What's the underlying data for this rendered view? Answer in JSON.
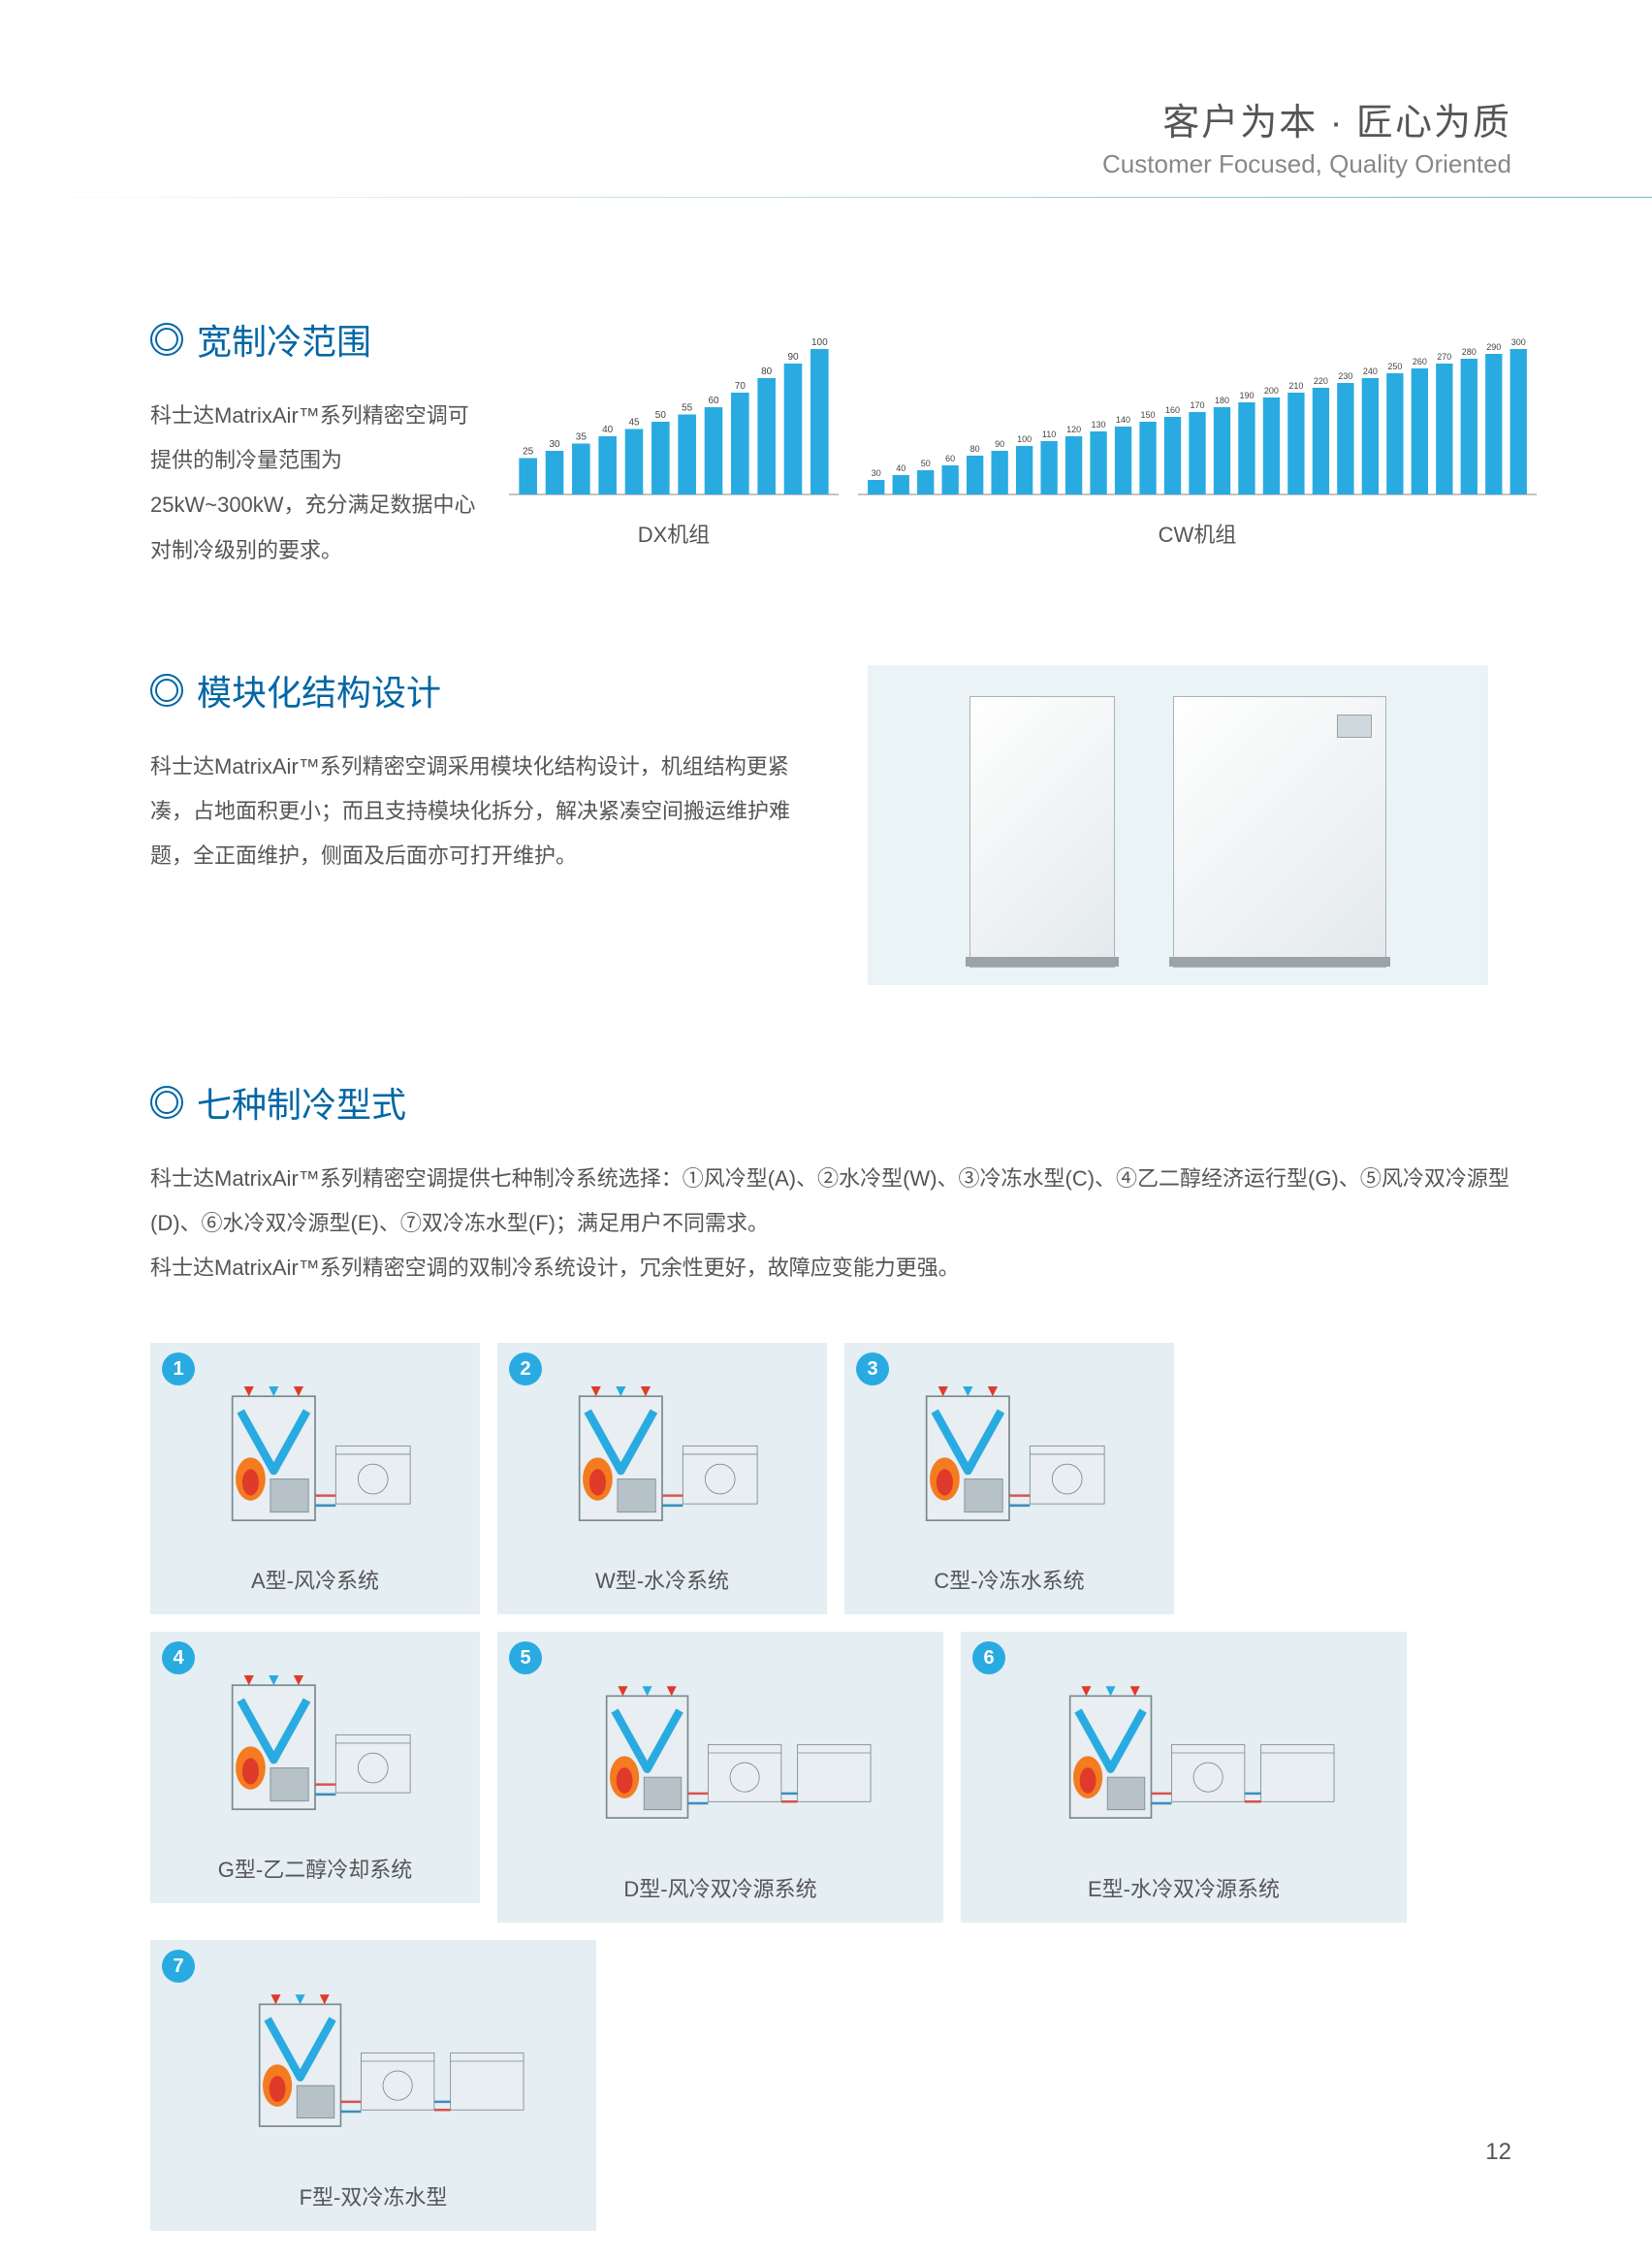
{
  "header": {
    "title_cn": "客户为本 · 匠心为质",
    "title_en": "Customer Focused, Quality Oriented",
    "title_cn_color": "#555555",
    "title_en_color": "#888888",
    "hr_gradient_from": "#ffffff",
    "hr_gradient_to": "#6fb7c9"
  },
  "brand_blue": "#0066a5",
  "bar_color": "#29abe2",
  "panel_bg": "#e5eef2",
  "sec1": {
    "title": "宽制冷范围",
    "desc": "科士达MatrixAir™系列精密空调可提供的制冷量范围为25kW~300kW，充分满足数据中心对制冷级别的要求。",
    "dx": {
      "label": "DX机组",
      "type": "bar",
      "values": [
        25,
        30,
        35,
        40,
        45,
        50,
        55,
        60,
        70,
        80,
        90,
        100
      ],
      "max": 100
    },
    "cw": {
      "label": "CW机组",
      "type": "bar",
      "values": [
        30,
        40,
        50,
        60,
        80,
        90,
        100,
        110,
        120,
        130,
        140,
        150,
        160,
        170,
        180,
        190,
        200,
        210,
        220,
        230,
        240,
        250,
        260,
        270,
        280,
        290,
        300
      ],
      "max": 300
    }
  },
  "sec2": {
    "title": "模块化结构设计",
    "desc": "科士达MatrixAir™系列精密空调采用模块化结构设计，机组结构更紧凑，占地面积更小；而且支持模块化拆分，解决紧凑空间搬运维护难题，全正面维护，侧面及后面亦可打开维护。",
    "illustration_bg": "#eaf3f6"
  },
  "sec3": {
    "title": "七种制冷型式",
    "desc_line1": "科士达MatrixAir™系列精密空调提供七种制冷系统选择：①风冷型(A)、②水冷型(W)、③冷冻水型(C)、④乙二醇经济运行型(G)、⑤风冷双冷源型(D)、⑥水冷双冷源型(E)、⑦双冷冻水型(F)；满足用户不同需求。",
    "desc_line2": "科士达MatrixAir™系列精密空调的双制冷系统设计，冗余性更好，故障应变能力更强。",
    "types": [
      {
        "num": "1",
        "label": "A型-风冷系统",
        "size": "small"
      },
      {
        "num": "2",
        "label": "W型-水冷系统",
        "size": "small"
      },
      {
        "num": "3",
        "label": "C型-冷冻水系统",
        "size": "small"
      },
      {
        "num": "4",
        "label": "G型-乙二醇冷却系统",
        "size": "small"
      },
      {
        "num": "5",
        "label": "D型-风冷双冷源系统",
        "size": "large"
      },
      {
        "num": "6",
        "label": "E型-水冷双冷源系统",
        "size": "large"
      },
      {
        "num": "7",
        "label": "F型-双冷冻水型",
        "size": "large"
      }
    ],
    "illus_colors": {
      "cabinet_outline": "#7a8a92",
      "cabinet_fill": "#e8eef1",
      "v_blue": "#29abe2",
      "flame_orange": "#f47b20",
      "flame_red": "#e03a2a",
      "pipe_red": "#d9534f",
      "pipe_blue": "#3c8dbc",
      "arrow_up": "#e03a2a"
    }
  },
  "page_number": "12"
}
